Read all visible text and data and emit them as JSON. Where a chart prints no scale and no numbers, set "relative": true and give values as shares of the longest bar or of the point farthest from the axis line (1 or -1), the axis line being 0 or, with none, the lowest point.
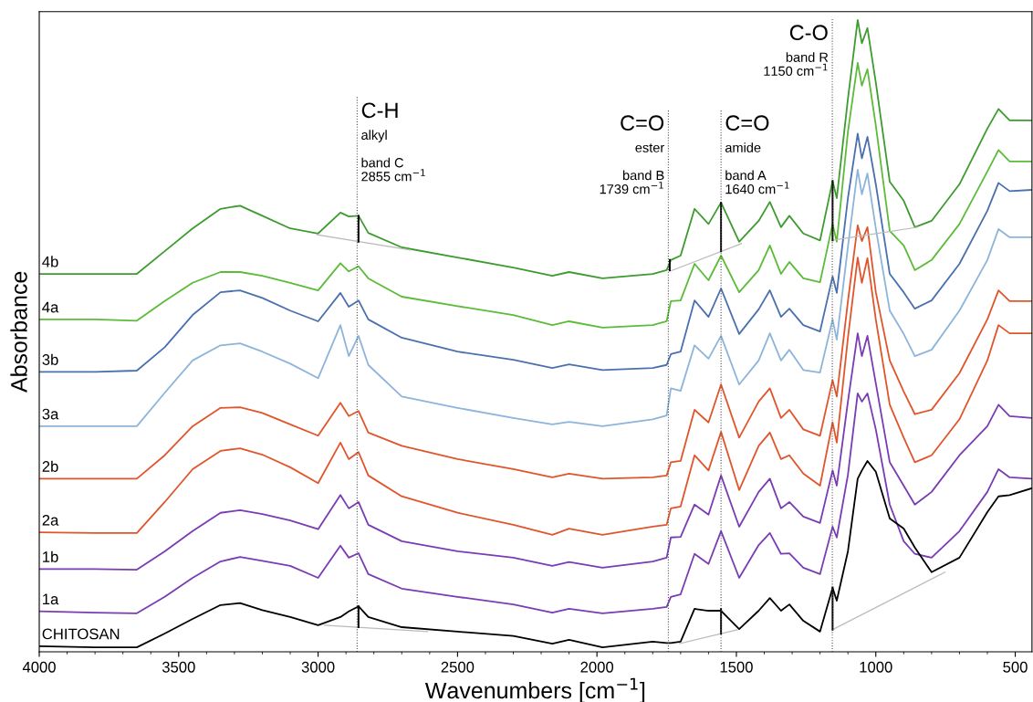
{
  "chart_data": {
    "type": "line",
    "relative": true,
    "xlabel": "Wavenumbers [cm$^{−1}$]",
    "ylabel": "Absorbance",
    "xlim": [
      4000,
      440
    ],
    "xticks": [
      4000,
      3500,
      3000,
      2500,
      2000,
      1500,
      1000,
      500,
      {
        "value": 3900,
        "label": null
      },
      {
        "value": 3800,
        "label": null
      },
      {
        "value": 3700,
        "label": null
      },
      {
        "value": 3600,
        "label": null
      },
      {
        "value": 3400,
        "label": null
      },
      {
        "value": 3300,
        "label": null
      },
      {
        "value": 3200,
        "label": null
      },
      {
        "value": 3100,
        "label": null
      },
      {
        "value": 2900,
        "label": null
      },
      {
        "value": 2800,
        "label": null
      },
      {
        "value": 2700,
        "label": null
      },
      {
        "value": 2600,
        "label": null
      },
      {
        "value": 2400,
        "label": null
      },
      {
        "value": 2300,
        "label": null
      },
      {
        "value": 2200,
        "label": null
      },
      {
        "value": 2100,
        "label": null
      },
      {
        "value": 1900,
        "label": null
      },
      {
        "value": 1800,
        "label": null
      },
      {
        "value": 1700,
        "label": null
      },
      {
        "value": 1600,
        "label": null
      },
      {
        "value": 1400,
        "label": null
      },
      {
        "value": 1300,
        "label": null
      },
      {
        "value": 1200,
        "label": null
      },
      {
        "value": 1100,
        "label": null
      },
      {
        "value": 900,
        "label": null
      },
      {
        "value": 800,
        "label": null
      },
      {
        "value": 700,
        "label": null
      },
      {
        "value": 600,
        "label": null
      }
    ],
    "x": [
      4000,
      3800,
      3650,
      3550,
      3450,
      3350,
      3280,
      3200,
      3100,
      3000,
      2920,
      2890,
      2855,
      2820,
      2700,
      2500,
      2300,
      2160,
      2100,
      1980,
      1800,
      1750,
      1735,
      1700,
      1650,
      1600,
      1555,
      1490,
      1420,
      1380,
      1340,
      1310,
      1260,
      1200,
      1155,
      1140,
      1100,
      1065,
      1050,
      1030,
      1000,
      950,
      900,
      860,
      800,
      700,
      600,
      560,
      520,
      440
    ],
    "series": [
      {
        "name": "4b",
        "color": "#3d9b2f",
        "values": [
          0.598,
          0.598,
          0.598,
          0.634,
          0.67,
          0.701,
          0.706,
          0.69,
          0.67,
          0.662,
          0.695,
          0.689,
          0.69,
          0.663,
          0.64,
          0.624,
          0.608,
          0.595,
          0.601,
          0.591,
          0.598,
          0.604,
          0.62,
          0.627,
          0.701,
          0.677,
          0.711,
          0.649,
          0.682,
          0.712,
          0.672,
          0.69,
          0.662,
          0.651,
          0.745,
          0.718,
          0.875,
          1.0,
          0.963,
          0.987,
          0.901,
          0.744,
          0.714,
          0.672,
          0.682,
          0.74,
          0.828,
          0.859,
          0.841,
          0.841
        ]
      },
      {
        "name": "4a",
        "color": "#5cbb38",
        "values": [
          0.526,
          0.526,
          0.524,
          0.555,
          0.584,
          0.601,
          0.601,
          0.595,
          0.584,
          0.572,
          0.615,
          0.602,
          0.61,
          0.591,
          0.562,
          0.547,
          0.533,
          0.517,
          0.523,
          0.513,
          0.517,
          0.523,
          0.555,
          0.556,
          0.614,
          0.588,
          0.627,
          0.569,
          0.604,
          0.643,
          0.598,
          0.617,
          0.591,
          0.585,
          0.677,
          0.649,
          0.823,
          0.932,
          0.896,
          0.922,
          0.833,
          0.666,
          0.643,
          0.604,
          0.62,
          0.677,
          0.76,
          0.794,
          0.776,
          0.776
        ]
      },
      {
        "name": "3b",
        "color": "#4a70ae",
        "values": [
          0.443,
          0.443,
          0.445,
          0.482,
          0.533,
          0.569,
          0.572,
          0.56,
          0.54,
          0.523,
          0.568,
          0.546,
          0.556,
          0.526,
          0.497,
          0.475,
          0.462,
          0.449,
          0.455,
          0.446,
          0.449,
          0.454,
          0.471,
          0.475,
          0.556,
          0.53,
          0.575,
          0.503,
          0.542,
          0.572,
          0.53,
          0.543,
          0.517,
          0.507,
          0.594,
          0.568,
          0.718,
          0.82,
          0.781,
          0.815,
          0.74,
          0.598,
          0.569,
          0.543,
          0.556,
          0.614,
          0.698,
          0.742,
          0.729,
          0.731
        ]
      },
      {
        "name": "3a",
        "color": "#8db4da",
        "values": [
          0.357,
          0.357,
          0.357,
          0.41,
          0.461,
          0.485,
          0.488,
          0.475,
          0.456,
          0.433,
          0.517,
          0.468,
          0.5,
          0.454,
          0.404,
          0.386,
          0.37,
          0.36,
          0.364,
          0.357,
          0.368,
          0.374,
          0.417,
          0.413,
          0.485,
          0.464,
          0.5,
          0.423,
          0.461,
          0.504,
          0.461,
          0.478,
          0.446,
          0.442,
          0.526,
          0.494,
          0.641,
          0.763,
          0.724,
          0.757,
          0.67,
          0.54,
          0.503,
          0.468,
          0.478,
          0.54,
          0.62,
          0.669,
          0.656,
          0.656
        ]
      },
      {
        "name": "2b",
        "color": "#e0552b",
        "values": [
          0.274,
          0.274,
          0.274,
          0.311,
          0.357,
          0.386,
          0.387,
          0.378,
          0.36,
          0.342,
          0.394,
          0.373,
          0.381,
          0.347,
          0.326,
          0.305,
          0.289,
          0.276,
          0.282,
          0.274,
          0.276,
          0.279,
          0.3,
          0.302,
          0.383,
          0.363,
          0.423,
          0.339,
          0.396,
          0.417,
          0.37,
          0.383,
          0.352,
          0.342,
          0.43,
          0.404,
          0.555,
          0.675,
          0.65,
          0.672,
          0.569,
          0.461,
          0.412,
          0.376,
          0.383,
          0.441,
          0.526,
          0.572,
          0.555,
          0.555
        ]
      },
      {
        "name": "2a",
        "color": "#e0552b",
        "values": [
          0.189,
          0.188,
          0.188,
          0.237,
          0.289,
          0.318,
          0.322,
          0.312,
          0.292,
          0.267,
          0.331,
          0.305,
          0.316,
          0.279,
          0.246,
          0.22,
          0.201,
          0.185,
          0.195,
          0.185,
          0.198,
          0.201,
          0.227,
          0.23,
          0.311,
          0.287,
          0.348,
          0.256,
          0.326,
          0.347,
          0.305,
          0.311,
          0.282,
          0.263,
          0.363,
          0.331,
          0.497,
          0.624,
          0.584,
          0.623,
          0.526,
          0.391,
          0.339,
          0.3,
          0.311,
          0.368,
          0.461,
          0.517,
          0.504,
          0.504
        ]
      },
      {
        "name": "1b",
        "color": "#7a3cb4",
        "values": [
          0.131,
          0.131,
          0.13,
          0.159,
          0.191,
          0.22,
          0.224,
          0.218,
          0.208,
          0.194,
          0.248,
          0.227,
          0.237,
          0.201,
          0.175,
          0.159,
          0.149,
          0.136,
          0.142,
          0.133,
          0.143,
          0.149,
          0.181,
          0.182,
          0.233,
          0.217,
          0.279,
          0.198,
          0.253,
          0.274,
          0.227,
          0.237,
          0.214,
          0.204,
          0.287,
          0.263,
          0.396,
          0.504,
          0.468,
          0.5,
          0.425,
          0.3,
          0.263,
          0.233,
          0.253,
          0.311,
          0.357,
          0.391,
          0.373,
          0.37
        ]
      },
      {
        "name": "1a",
        "color": "#7a3cb4",
        "values": [
          0.064,
          0.062,
          0.061,
          0.087,
          0.117,
          0.143,
          0.15,
          0.144,
          0.136,
          0.117,
          0.168,
          0.149,
          0.156,
          0.123,
          0.1,
          0.087,
          0.075,
          0.062,
          0.068,
          0.061,
          0.068,
          0.071,
          0.087,
          0.091,
          0.155,
          0.139,
          0.191,
          0.117,
          0.169,
          0.188,
          0.155,
          0.156,
          0.133,
          0.123,
          0.198,
          0.181,
          0.28,
          0.409,
          0.396,
          0.409,
          0.352,
          0.233,
          0.175,
          0.155,
          0.149,
          0.191,
          0.253,
          0.289,
          0.276,
          0.274
        ]
      },
      {
        "name": "CHITOSAN",
        "color": "#000000",
        "values": [
          0.009,
          0.007,
          0.007,
          0.029,
          0.052,
          0.074,
          0.077,
          0.066,
          0.055,
          0.042,
          0.055,
          0.064,
          0.072,
          0.055,
          0.039,
          0.032,
          0.025,
          0.013,
          0.019,
          0.007,
          0.016,
          0.014,
          0.014,
          0.016,
          0.068,
          0.065,
          0.065,
          0.036,
          0.065,
          0.085,
          0.065,
          0.075,
          0.049,
          0.032,
          0.101,
          0.081,
          0.159,
          0.274,
          0.287,
          0.302,
          0.285,
          0.211,
          0.195,
          0.165,
          0.126,
          0.149,
          0.221,
          0.246,
          0.248,
          0.259
        ]
      },
      {
        "color": "#bbbbbb",
        "x": [
          3003,
          2669,
          2200,
          1740,
          1482,
          1300,
          1158,
          850
        ],
        "values": [
          0.66,
          0.636,
          null,
          0.602,
          0.646,
          null,
          0.651,
          0.672
        ]
      },
      {
        "color": "#bbbbbb",
        "x": [
          2977,
          2607,
          2200,
          1704,
          1497,
          1300,
          1156,
          752
        ],
        "values": [
          0.042,
          0.032,
          null,
          0.013,
          0.035,
          null,
          0.035,
          0.126
        ]
      },
      {
        "color": "#000000",
        "x": [
          2855,
          2855,
          2300,
          1739,
          1739,
          1650,
          1555,
          1555,
          1300,
          1155,
          1155
        ],
        "values": [
          0.69,
          0.649,
          null,
          0.62,
          0.604,
          null,
          0.711,
          0.634,
          null,
          0.745,
          0.651
        ]
      },
      {
        "color": "#000000",
        "x": [
          2855,
          2855,
          2300,
          1555,
          1555,
          1300,
          1155,
          1155
        ],
        "values": [
          0.072,
          0.039,
          null,
          0.068,
          0.029,
          null,
          0.102,
          0.035
        ]
      }
    ],
    "ref_lines": [
      {
        "axis": "x",
        "value": 2860,
        "label": "alkyl\n\nband C\n2855 cm$^{−1}$",
        "line_style": "dotted"
      },
      {
        "axis": "x",
        "value": 1744,
        "label": "ester\n\nband B\n1739 cm$^{−1}$",
        "line_style": "dotted"
      },
      {
        "axis": "x",
        "value": 1555,
        "label": "amide\n\nband A\n1640 cm$^{−1}$",
        "line_style": "dotted"
      },
      {
        "axis": "x",
        "value": 1156,
        "label": "band R\n1150 cm$^{−1}$",
        "line_style": "dotted"
      }
    ],
    "annotations": [
      {
        "text": "C-H",
        "x": 2845,
        "y": 0.854
      },
      {
        "text": "C=O",
        "x": 1760,
        "y": 0.834
      },
      {
        "text": "C=O",
        "x": 1540,
        "y": 0.834
      },
      {
        "text": "C-O",
        "x": 1170,
        "y": 0.977
      }
    ]
  }
}
